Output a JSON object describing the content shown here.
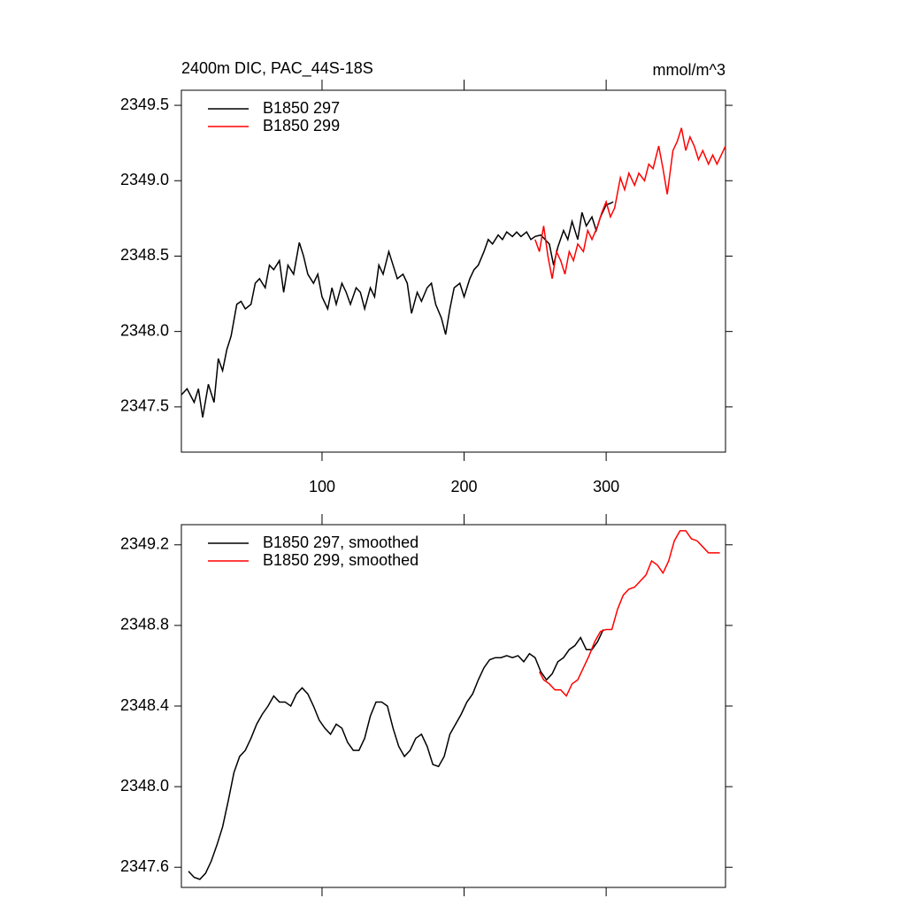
{
  "chart_data": [
    {
      "type": "line",
      "title": "2400m DIC, PAC_44S-18S",
      "right_title": "mmol/m^3",
      "xlim": [
        1,
        384
      ],
      "xticks": [
        100,
        200,
        300
      ],
      "ylim": [
        2347.2,
        2349.6
      ],
      "yticks": [
        {
          "value": 2347.5,
          "label": "2347.5"
        },
        {
          "value": 2348.0,
          "label": "2348.0"
        },
        {
          "value": 2348.5,
          "label": "2348.5"
        },
        {
          "value": 2349.0,
          "label": "2349.0"
        },
        {
          "value": 2349.5,
          "label": "2349.5"
        }
      ],
      "grid": false,
      "legend": "upper-left",
      "series": [
        {
          "name": "B1850 297",
          "color": "#000000",
          "x": [
            1,
            5,
            10,
            13,
            16,
            20,
            24,
            27,
            30,
            33,
            36,
            40,
            43,
            46,
            50,
            53,
            56,
            60,
            63,
            66,
            70,
            73,
            76,
            80,
            84,
            87,
            90,
            94,
            97,
            100,
            104,
            107,
            110,
            114,
            117,
            120,
            124,
            127,
            130,
            134,
            137,
            140,
            143,
            147,
            150,
            153,
            157,
            160,
            163,
            167,
            170,
            174,
            177,
            180,
            184,
            187,
            190,
            193,
            197,
            200,
            204,
            207,
            210,
            214,
            217,
            220,
            224,
            227,
            230,
            234,
            237,
            240,
            244,
            247,
            250,
            254,
            257,
            260,
            263,
            266,
            270,
            273,
            276,
            280,
            283,
            286,
            290,
            293,
            296,
            300,
            303,
            305
          ],
          "values": [
            2347.58,
            2347.62,
            2347.53,
            2347.62,
            2347.43,
            2347.65,
            2347.53,
            2347.82,
            2347.74,
            2347.88,
            2347.97,
            2348.18,
            2348.2,
            2348.15,
            2348.18,
            2348.32,
            2348.35,
            2348.29,
            2348.44,
            2348.41,
            2348.47,
            2348.26,
            2348.44,
            2348.38,
            2348.59,
            2348.5,
            2348.38,
            2348.32,
            2348.38,
            2348.23,
            2348.15,
            2348.29,
            2348.18,
            2348.32,
            2348.26,
            2348.18,
            2348.29,
            2348.26,
            2348.15,
            2348.29,
            2348.23,
            2348.44,
            2348.38,
            2348.53,
            2348.44,
            2348.35,
            2348.38,
            2348.32,
            2348.12,
            2348.26,
            2348.2,
            2348.29,
            2348.32,
            2348.18,
            2348.09,
            2347.98,
            2348.15,
            2348.29,
            2348.32,
            2348.23,
            2348.35,
            2348.41,
            2348.44,
            2348.53,
            2348.61,
            2348.58,
            2348.64,
            2348.61,
            2348.66,
            2348.63,
            2348.66,
            2348.63,
            2348.66,
            2348.61,
            2348.63,
            2348.64,
            2348.61,
            2348.58,
            2348.44,
            2348.56,
            2348.67,
            2348.61,
            2348.73,
            2348.61,
            2348.79,
            2348.7,
            2348.76,
            2348.67,
            2348.76,
            2348.84,
            2348.85,
            2348.86
          ]
        },
        {
          "name": "B1850 299",
          "color": "#ff0000",
          "x": [
            250,
            253,
            256,
            259,
            262,
            265,
            268,
            271,
            274,
            277,
            280,
            284,
            287,
            290,
            294,
            297,
            300,
            303,
            306,
            310,
            313,
            316,
            320,
            323,
            327,
            330,
            333,
            337,
            340,
            343,
            347,
            350,
            353,
            356,
            359,
            362,
            365,
            368,
            372,
            375,
            378,
            381,
            384
          ],
          "values": [
            2348.61,
            2348.53,
            2348.7,
            2348.5,
            2348.35,
            2348.53,
            2348.47,
            2348.38,
            2348.53,
            2348.47,
            2348.58,
            2348.53,
            2348.67,
            2348.61,
            2348.7,
            2348.79,
            2348.86,
            2348.76,
            2348.82,
            2349.02,
            2348.94,
            2349.05,
            2348.97,
            2349.05,
            2349.0,
            2349.11,
            2349.08,
            2349.23,
            2349.08,
            2348.91,
            2349.2,
            2349.26,
            2349.35,
            2349.2,
            2349.29,
            2349.23,
            2349.14,
            2349.2,
            2349.11,
            2349.17,
            2349.11,
            2349.17,
            2349.23
          ]
        }
      ]
    },
    {
      "type": "line",
      "xlim": [
        1,
        384
      ],
      "xticks": [
        100,
        200,
        300
      ],
      "ylim": [
        2347.5,
        2349.3
      ],
      "yticks": [
        {
          "value": 2347.6,
          "label": "2347.6"
        },
        {
          "value": 2348.0,
          "label": "2348.0"
        },
        {
          "value": 2348.4,
          "label": "2348.4"
        },
        {
          "value": 2348.8,
          "label": "2348.8"
        },
        {
          "value": 2349.2,
          "label": "2349.2"
        }
      ],
      "grid": false,
      "legend": "upper-left",
      "series": [
        {
          "name": "B1850 297, smoothed",
          "color": "#000000",
          "x": [
            6,
            10,
            14,
            18,
            22,
            26,
            30,
            34,
            38,
            42,
            46,
            50,
            54,
            58,
            62,
            66,
            70,
            74,
            78,
            82,
            86,
            90,
            94,
            98,
            102,
            106,
            110,
            114,
            118,
            122,
            126,
            130,
            134,
            138,
            142,
            146,
            150,
            154,
            158,
            162,
            166,
            170,
            174,
            178,
            182,
            186,
            190,
            194,
            198,
            202,
            206,
            210,
            214,
            218,
            222,
            226,
            230,
            234,
            238,
            242,
            246,
            250,
            254,
            258,
            262,
            266,
            270,
            274,
            278,
            282,
            286,
            290,
            294,
            298
          ],
          "values": [
            2347.58,
            2347.55,
            2347.54,
            2347.57,
            2347.63,
            2347.71,
            2347.8,
            2347.93,
            2348.07,
            2348.15,
            2348.18,
            2348.24,
            2348.31,
            2348.36,
            2348.4,
            2348.45,
            2348.42,
            2348.42,
            2348.4,
            2348.46,
            2348.49,
            2348.46,
            2348.4,
            2348.33,
            2348.29,
            2348.26,
            2348.31,
            2348.29,
            2348.22,
            2348.18,
            2348.18,
            2348.24,
            2348.35,
            2348.42,
            2348.42,
            2348.4,
            2348.29,
            2348.2,
            2348.15,
            2348.18,
            2348.24,
            2348.26,
            2348.2,
            2348.11,
            2348.1,
            2348.15,
            2348.26,
            2348.31,
            2348.36,
            2348.42,
            2348.46,
            2348.53,
            2348.59,
            2348.63,
            2348.64,
            2348.64,
            2348.65,
            2348.64,
            2348.65,
            2348.62,
            2348.66,
            2348.64,
            2348.57,
            2348.53,
            2348.56,
            2348.62,
            2348.64,
            2348.68,
            2348.7,
            2348.74,
            2348.68,
            2348.68,
            2348.72,
            2348.78
          ]
        },
        {
          "name": "B1850 299, smoothed",
          "color": "#ff0000",
          "x": [
            253,
            256,
            260,
            264,
            268,
            272,
            276,
            280,
            284,
            288,
            292,
            296,
            300,
            304,
            308,
            312,
            316,
            320,
            324,
            328,
            332,
            336,
            340,
            344,
            348,
            352,
            356,
            360,
            364,
            368,
            372,
            376,
            380
          ],
          "values": [
            2348.57,
            2348.53,
            2348.51,
            2348.48,
            2348.48,
            2348.45,
            2348.51,
            2348.53,
            2348.59,
            2348.65,
            2348.72,
            2348.77,
            2348.78,
            2348.78,
            2348.88,
            2348.95,
            2348.98,
            2348.99,
            2349.02,
            2349.05,
            2349.12,
            2349.1,
            2349.06,
            2349.12,
            2349.22,
            2349.27,
            2349.27,
            2349.23,
            2349.22,
            2349.19,
            2349.16,
            2349.16,
            2349.16
          ]
        }
      ]
    }
  ]
}
